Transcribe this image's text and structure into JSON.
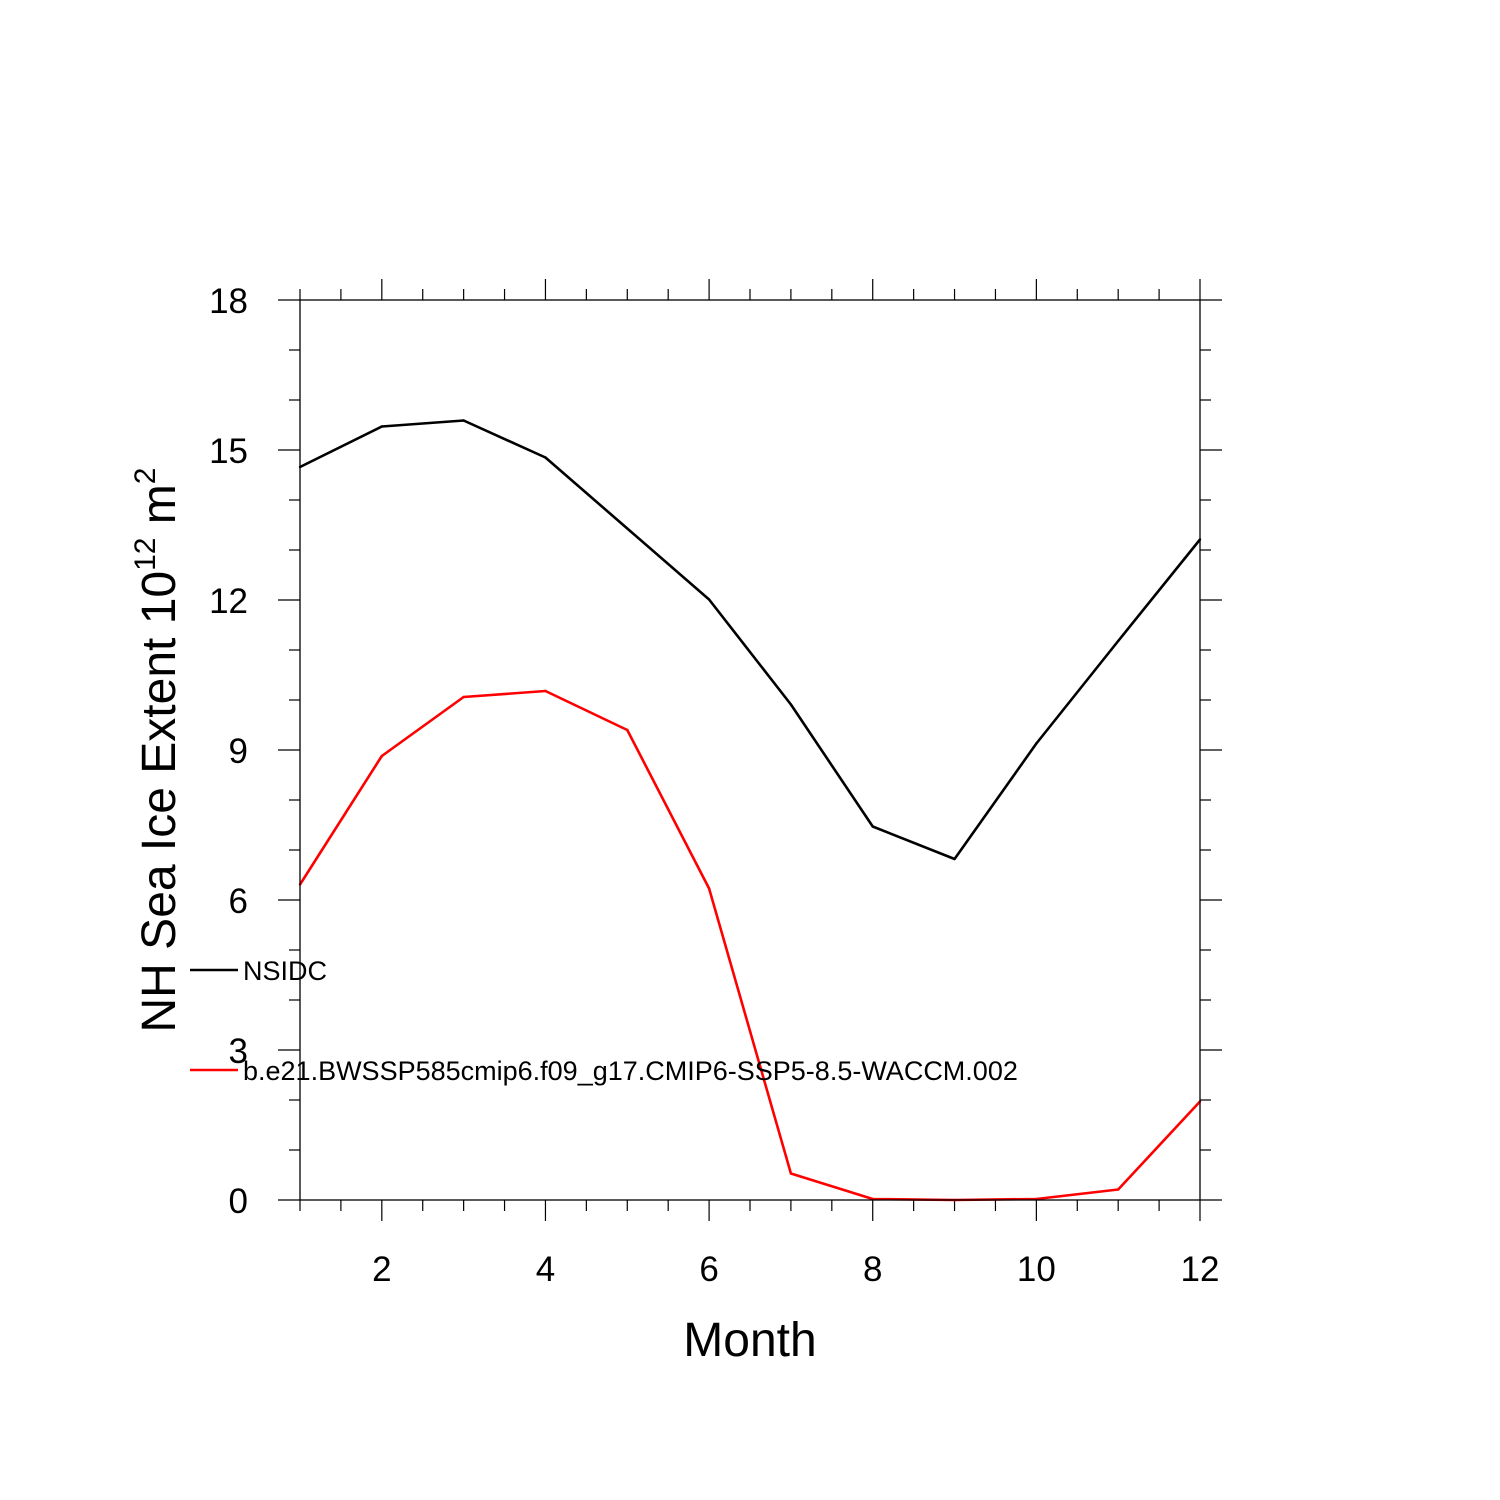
{
  "chart_data": {
    "type": "line",
    "xlabel": "Month",
    "ylabel": {
      "text": "NH Sea Ice Extent 10",
      "exponent": "12",
      "unit": " m",
      "unit_exponent": "2"
    },
    "xlim": [
      1,
      12
    ],
    "ylim": [
      0,
      18
    ],
    "x_ticks": [
      2,
      4,
      6,
      8,
      10,
      12
    ],
    "x_tick_labels": [
      "2",
      "4",
      "6",
      "8",
      "10",
      "12"
    ],
    "y_ticks": [
      0,
      3,
      6,
      9,
      12,
      15,
      18
    ],
    "y_tick_labels": [
      "0",
      "3",
      "6",
      "9",
      "12",
      "15",
      "18"
    ],
    "x": [
      1,
      2,
      3,
      4,
      5,
      6,
      7,
      8,
      9,
      10,
      11,
      12
    ],
    "series": [
      {
        "name": "NSIDC",
        "color": "#000000",
        "values": [
          14.66,
          15.47,
          15.59,
          14.85,
          13.43,
          12.01,
          9.91,
          7.47,
          6.82,
          9.13,
          11.18,
          13.21
        ]
      },
      {
        "name": "b.e21.BWSSP585cmip6.f09_g17.CMIP6-SSP5-8.5-WACCM.002",
        "color": "#ff0000",
        "values": [
          6.31,
          8.88,
          10.06,
          10.18,
          9.4,
          6.23,
          0.53,
          0.02,
          0.0,
          0.02,
          0.21,
          1.97
        ]
      }
    ],
    "grid": false,
    "legend_position": "lower-left"
  }
}
